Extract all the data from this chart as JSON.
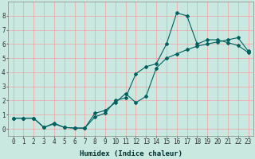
{
  "title": "",
  "xlabel": "Humidex (Indice chaleur)",
  "ylabel": "",
  "background_color": "#c8e8e0",
  "grid_color": "#f5a0a0",
  "line_color": "#006060",
  "xlim": [
    -0.5,
    23.5
  ],
  "ylim": [
    -0.5,
    9.0
  ],
  "xticks": [
    0,
    1,
    2,
    3,
    4,
    5,
    6,
    7,
    8,
    9,
    10,
    11,
    12,
    13,
    14,
    15,
    16,
    17,
    18,
    19,
    20,
    21,
    22,
    23
  ],
  "yticks": [
    0,
    1,
    2,
    3,
    4,
    5,
    6,
    7,
    8
  ],
  "line1_x": [
    0,
    1,
    2,
    3,
    4,
    5,
    6,
    7,
    8,
    9,
    10,
    11,
    12,
    13,
    14,
    15,
    16,
    17,
    18,
    19,
    20,
    21,
    22,
    23
  ],
  "line1_y": [
    0.75,
    0.75,
    0.75,
    0.1,
    0.35,
    0.1,
    0.05,
    0.05,
    0.85,
    1.1,
    2.0,
    2.2,
    3.9,
    4.4,
    4.6,
    6.0,
    8.2,
    8.0,
    6.0,
    6.3,
    6.3,
    6.1,
    5.9,
    5.4
  ],
  "line2_x": [
    0,
    1,
    2,
    3,
    4,
    5,
    6,
    7,
    8,
    9,
    10,
    11,
    12,
    13,
    14,
    15,
    16,
    17,
    18,
    19,
    20,
    21,
    22,
    23
  ],
  "line2_y": [
    0.75,
    0.75,
    0.75,
    0.1,
    0.4,
    0.1,
    0.05,
    0.05,
    1.1,
    1.3,
    1.85,
    2.5,
    1.85,
    2.3,
    4.3,
    5.0,
    5.3,
    5.6,
    5.85,
    6.0,
    6.15,
    6.3,
    6.45,
    5.5
  ],
  "xlabel_fontsize": 6.5,
  "tick_fontsize": 5.5
}
